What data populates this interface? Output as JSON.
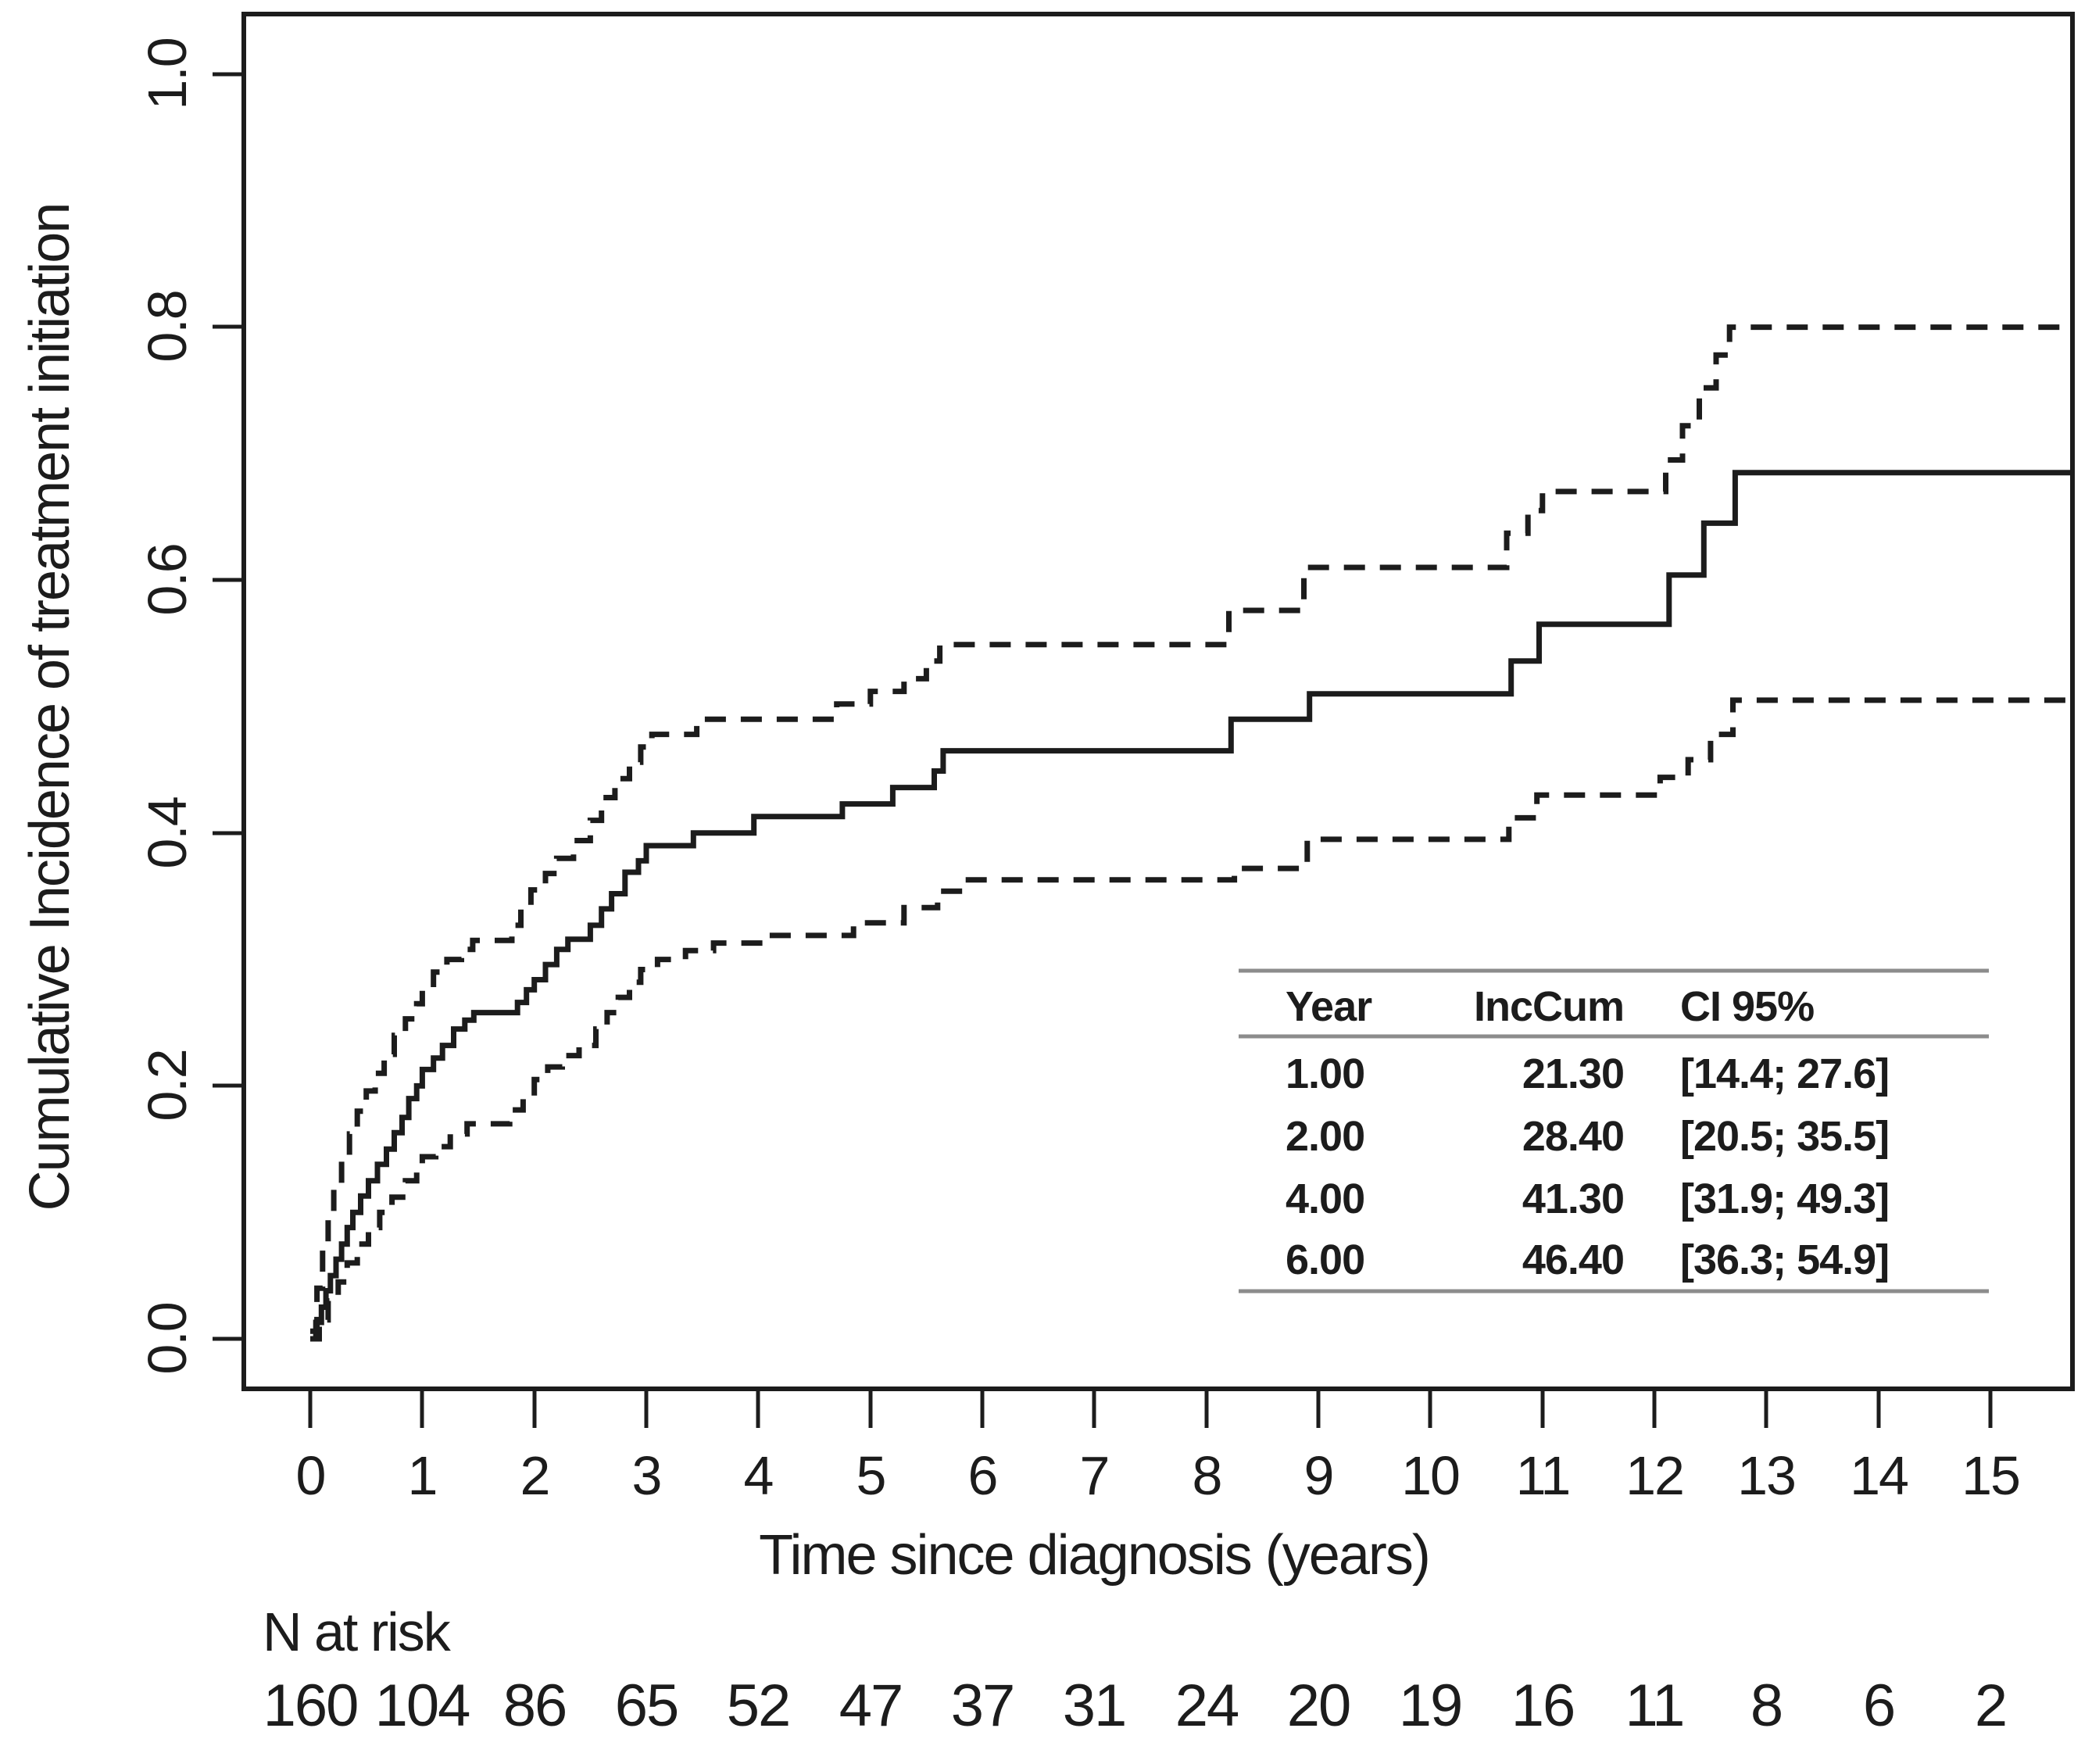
{
  "colors": {
    "ink": "#1c1c1c",
    "table_rule": "#8c8c8c",
    "background": "#ffffff"
  },
  "chart_data": {
    "type": "line",
    "subtype": "step-cumulative-incidence-with-ci",
    "title": "",
    "xlabel": "Time since diagnosis (years)",
    "ylabel": "Cumulative Incidence of treatment initiation",
    "xlim": [
      -0.6,
      15.73
    ],
    "ylim": [
      -0.04,
      1.05
    ],
    "grid": false,
    "x_ticks": [
      0,
      1,
      2,
      3,
      4,
      5,
      6,
      7,
      8,
      9,
      10,
      11,
      12,
      13,
      14,
      15
    ],
    "y_tick_labels": [
      "0.0",
      "0.2",
      "0.4",
      "0.6",
      "0.8",
      "1.0"
    ],
    "series": [
      {
        "name": "estimate",
        "label": "Cumulative incidence estimate",
        "line": "solid",
        "points": [
          [
            0,
            0
          ],
          [
            0.05,
            0.013
          ],
          [
            0.1,
            0.025
          ],
          [
            0.14,
            0.038
          ],
          [
            0.18,
            0.05
          ],
          [
            0.23,
            0.063
          ],
          [
            0.28,
            0.075
          ],
          [
            0.33,
            0.088
          ],
          [
            0.38,
            0.1
          ],
          [
            0.45,
            0.113
          ],
          [
            0.52,
            0.125
          ],
          [
            0.6,
            0.138
          ],
          [
            0.68,
            0.15
          ],
          [
            0.75,
            0.163
          ],
          [
            0.82,
            0.175
          ],
          [
            0.88,
            0.19
          ],
          [
            0.95,
            0.2
          ],
          [
            1,
            0.213
          ],
          [
            1.1,
            0.222
          ],
          [
            1.18,
            0.232
          ],
          [
            1.28,
            0.245
          ],
          [
            1.38,
            0.252
          ],
          [
            1.46,
            0.258
          ],
          [
            1.85,
            0.266
          ],
          [
            1.93,
            0.276
          ],
          [
            2,
            0.284
          ],
          [
            2.1,
            0.296
          ],
          [
            2.2,
            0.308
          ],
          [
            2.3,
            0.316
          ],
          [
            2.5,
            0.327
          ],
          [
            2.6,
            0.34
          ],
          [
            2.69,
            0.352
          ],
          [
            2.81,
            0.369
          ],
          [
            2.93,
            0.378
          ],
          [
            3,
            0.39
          ],
          [
            3.42,
            0.4
          ],
          [
            3.96,
            0.413
          ],
          [
            4.75,
            0.423
          ],
          [
            5.2,
            0.436
          ],
          [
            5.57,
            0.449
          ],
          [
            5.65,
            0.465
          ],
          [
            8.22,
            0.49
          ],
          [
            8.92,
            0.51
          ],
          [
            10.72,
            0.536
          ],
          [
            10.97,
            0.565
          ],
          [
            12.13,
            0.604
          ],
          [
            12.44,
            0.645
          ],
          [
            12.72,
            0.685
          ]
        ]
      },
      {
        "name": "upper-ci",
        "label": "Upper 95% confidence bound",
        "line": "dashed",
        "points": [
          [
            0,
            0.006
          ],
          [
            0.06,
            0.04
          ],
          [
            0.11,
            0.07
          ],
          [
            0.16,
            0.096
          ],
          [
            0.21,
            0.12
          ],
          [
            0.28,
            0.142
          ],
          [
            0.35,
            0.162
          ],
          [
            0.42,
            0.18
          ],
          [
            0.5,
            0.196
          ],
          [
            0.58,
            0.21
          ],
          [
            0.66,
            0.225
          ],
          [
            0.75,
            0.24
          ],
          [
            0.85,
            0.253
          ],
          [
            0.95,
            0.265
          ],
          [
            1,
            0.276
          ],
          [
            1.1,
            0.29
          ],
          [
            1.22,
            0.3
          ],
          [
            1.35,
            0.308
          ],
          [
            1.45,
            0.315
          ],
          [
            1.8,
            0.327
          ],
          [
            1.88,
            0.34
          ],
          [
            1.97,
            0.355
          ],
          [
            2.1,
            0.368
          ],
          [
            2.2,
            0.38
          ],
          [
            2.35,
            0.394
          ],
          [
            2.5,
            0.41
          ],
          [
            2.6,
            0.428
          ],
          [
            2.72,
            0.443
          ],
          [
            2.85,
            0.456
          ],
          [
            2.95,
            0.468
          ],
          [
            3.05,
            0.478
          ],
          [
            3.45,
            0.49
          ],
          [
            4.7,
            0.502
          ],
          [
            5,
            0.512
          ],
          [
            5.3,
            0.522
          ],
          [
            5.5,
            0.536
          ],
          [
            5.62,
            0.549
          ],
          [
            8.2,
            0.576
          ],
          [
            8.87,
            0.61
          ],
          [
            10.68,
            0.637
          ],
          [
            10.87,
            0.655
          ],
          [
            11,
            0.67
          ],
          [
            12.1,
            0.695
          ],
          [
            12.25,
            0.722
          ],
          [
            12.4,
            0.752
          ],
          [
            12.55,
            0.778
          ],
          [
            12.67,
            0.8
          ]
        ]
      },
      {
        "name": "lower-ci",
        "label": "Lower 95% confidence bound",
        "line": "dashed",
        "points": [
          [
            0,
            0
          ],
          [
            0.08,
            0.015
          ],
          [
            0.16,
            0.03
          ],
          [
            0.25,
            0.045
          ],
          [
            0.33,
            0.06
          ],
          [
            0.42,
            0.075
          ],
          [
            0.52,
            0.088
          ],
          [
            0.62,
            0.1
          ],
          [
            0.73,
            0.112
          ],
          [
            0.85,
            0.125
          ],
          [
            0.95,
            0.135
          ],
          [
            1,
            0.144
          ],
          [
            1.12,
            0.152
          ],
          [
            1.25,
            0.162
          ],
          [
            1.4,
            0.17
          ],
          [
            1.78,
            0.181
          ],
          [
            1.9,
            0.192
          ],
          [
            2,
            0.205
          ],
          [
            2.12,
            0.215
          ],
          [
            2.25,
            0.224
          ],
          [
            2.4,
            0.232
          ],
          [
            2.55,
            0.245
          ],
          [
            2.65,
            0.258
          ],
          [
            2.75,
            0.27
          ],
          [
            2.85,
            0.282
          ],
          [
            2.95,
            0.292
          ],
          [
            3.1,
            0.3
          ],
          [
            3.35,
            0.307
          ],
          [
            3.6,
            0.313
          ],
          [
            4.1,
            0.319
          ],
          [
            4.85,
            0.329
          ],
          [
            5.3,
            0.341
          ],
          [
            5.6,
            0.354
          ],
          [
            5.85,
            0.363
          ],
          [
            8.25,
            0.372
          ],
          [
            8.9,
            0.395
          ],
          [
            10.7,
            0.412
          ],
          [
            10.95,
            0.43
          ],
          [
            12.05,
            0.444
          ],
          [
            12.3,
            0.458
          ],
          [
            12.5,
            0.478
          ],
          [
            12.7,
            0.505
          ]
        ]
      }
    ],
    "inset_table": {
      "headers": [
        "Year",
        "IncCum",
        "CI 95%"
      ],
      "rows": [
        [
          "1.00",
          "21.30",
          "[14.4; 27.6]"
        ],
        [
          "2.00",
          "28.40",
          "[20.5; 35.5]"
        ],
        [
          "4.00",
          "41.30",
          "[31.9; 49.3]"
        ],
        [
          "6.00",
          "46.40",
          "[36.3; 54.9]"
        ]
      ]
    },
    "n_at_risk": {
      "label": "N at risk",
      "times": [
        0,
        1,
        2,
        3,
        4,
        5,
        6,
        7,
        8,
        9,
        10,
        11,
        12,
        13,
        14,
        15
      ],
      "counts": [
        160,
        104,
        86,
        65,
        52,
        47,
        37,
        31,
        24,
        20,
        19,
        16,
        11,
        8,
        6,
        2
      ]
    }
  }
}
